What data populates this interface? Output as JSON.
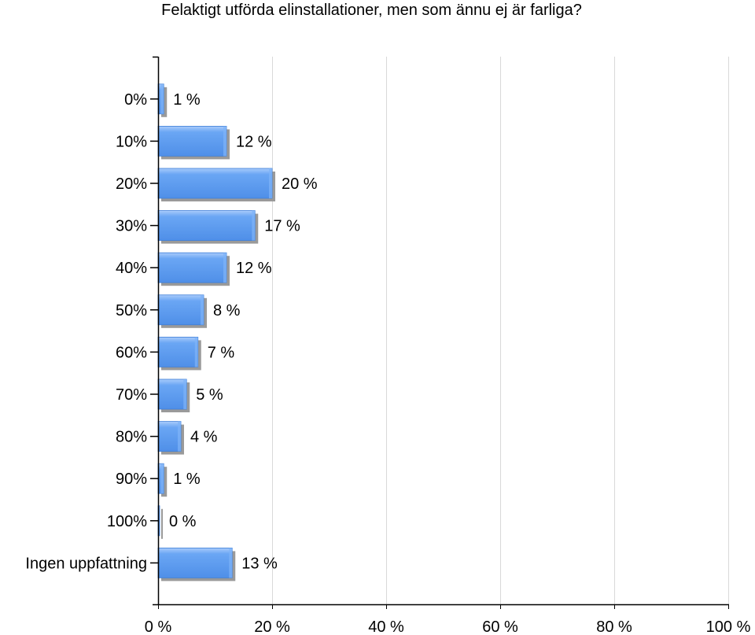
{
  "chart_data": {
    "type": "bar",
    "orientation": "horizontal",
    "title": "Felaktigt utförda elinstallationer, men som ännu ej är farliga?",
    "categories": [
      "0%",
      "10%",
      "20%",
      "30%",
      "40%",
      "50%",
      "60%",
      "70%",
      "80%",
      "90%",
      "100%",
      "Ingen uppfattning"
    ],
    "values": [
      1,
      12,
      20,
      17,
      12,
      8,
      7,
      5,
      4,
      1,
      0,
      13
    ],
    "data_labels": [
      "1 %",
      "12 %",
      "20 %",
      "17 %",
      "12 %",
      "8 %",
      "7 %",
      "5 %",
      "4 %",
      "1 %",
      "0 %",
      "13 %"
    ],
    "xlim": [
      0,
      100
    ],
    "x_ticks": [
      0,
      20,
      40,
      60,
      80,
      100
    ],
    "x_tick_labels": [
      "0 %",
      "20 %",
      "40 %",
      "60 %",
      "80 %",
      "100 %"
    ],
    "xlabel": "",
    "ylabel": "",
    "grid": true,
    "legend": "none",
    "colors": {
      "bar": "#5b9bf0",
      "bar_highlight": "#a9cbfb",
      "bar_shadow": "#9a9a9a",
      "grid": "#d9d9d9",
      "axis": "#000000"
    }
  }
}
